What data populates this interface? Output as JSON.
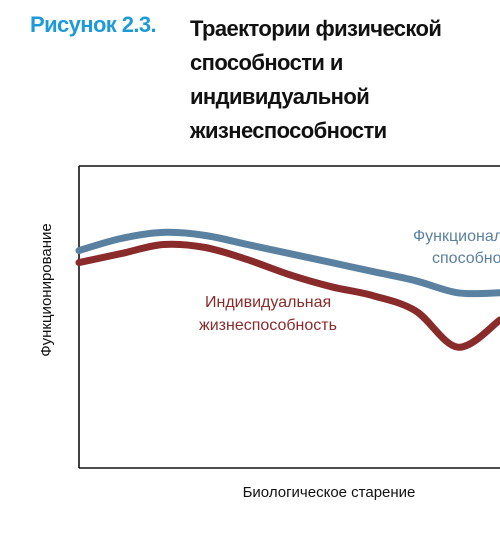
{
  "figure": {
    "label": "Рисунок 2.3.",
    "title_lines": [
      "Траектории физической",
      "способности и",
      "индивидуальной",
      "жизнеспособности"
    ]
  },
  "chart_data": {
    "type": "line",
    "title": "Траектории физической способности и индивидуальной жизнеспособности",
    "xlabel": "Биологическое старение",
    "ylabel": "Функционирование",
    "xlim": [
      0,
      100
    ],
    "ylim": [
      0,
      100
    ],
    "grid": false,
    "series": [
      {
        "label_lines": [
          "Функционал",
          "способно"
        ],
        "color": "#5b81a1",
        "x": [
          0,
          10,
          20,
          30,
          40,
          50,
          60,
          70,
          80,
          90,
          100
        ],
        "y": [
          72,
          76,
          78,
          77,
          74,
          71,
          68,
          65,
          62,
          58,
          58
        ]
      },
      {
        "label_lines": [
          "Индивидуальная",
          "жизнеспособность"
        ],
        "color": "#8a2b2b",
        "x": [
          0,
          10,
          20,
          30,
          40,
          50,
          60,
          70,
          80,
          90,
          100
        ],
        "y": [
          68,
          71,
          74,
          73,
          69,
          64,
          60,
          57,
          52,
          40,
          49
        ]
      }
    ]
  }
}
